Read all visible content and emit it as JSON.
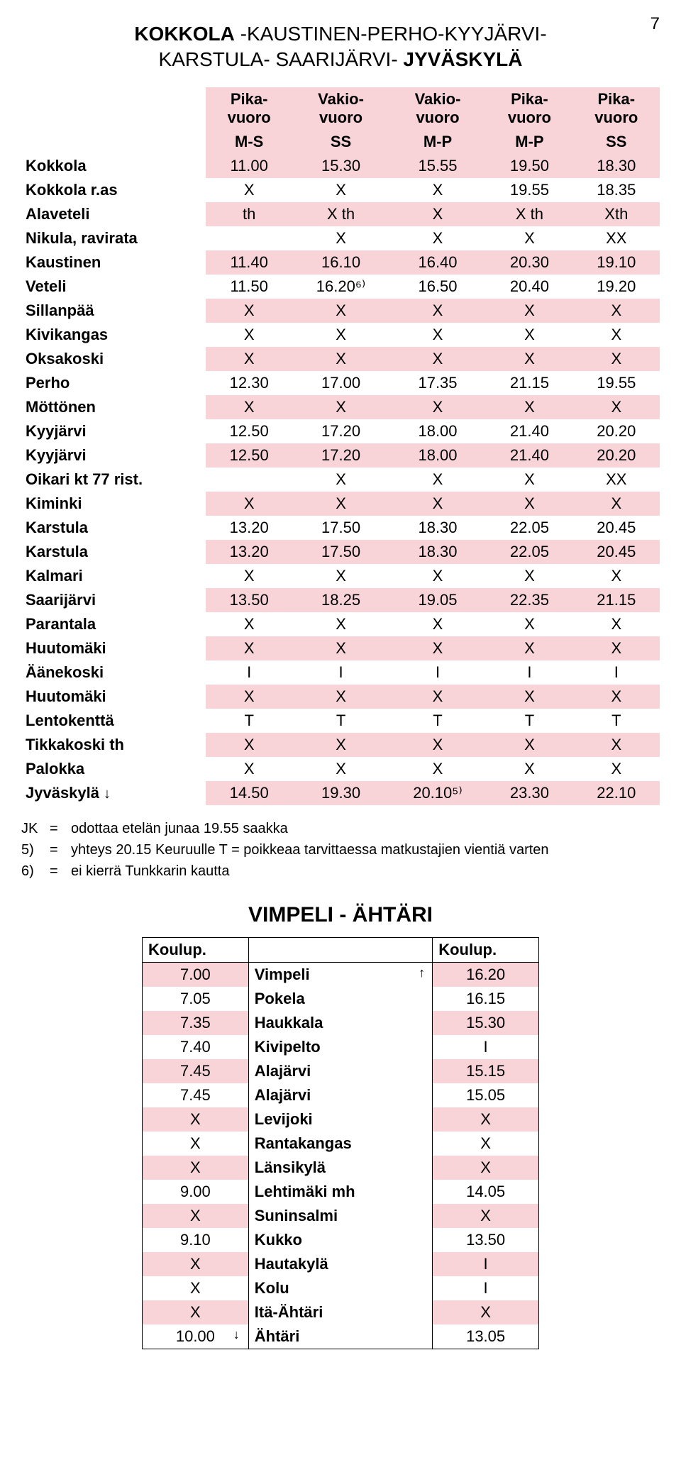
{
  "page_number": "7",
  "title_line1_bold1": "KOKKOLA",
  "title_line1_light": " -KAUSTINEN-PERHO-KYYJÄRVI-",
  "title_line2_light": "KARSTULA- SAARIJÄRVI- ",
  "title_line2_bold": "JYVÄSKYLÄ",
  "main_table": {
    "header1": [
      "Pika-vuoro",
      "Vakio-vuoro",
      "Vakio-vuoro",
      "Pika-vuoro",
      "Pika-vuoro"
    ],
    "header2": [
      "M-S",
      "SS",
      "M-P",
      "M-P",
      "SS"
    ],
    "rows": [
      {
        "stop": "Kokkola",
        "cells": [
          "11.00",
          "15.30",
          "15.55",
          "19.50",
          "18.30"
        ],
        "zebra": true
      },
      {
        "stop": "Kokkola r.as",
        "cells": [
          "X",
          "X",
          "X",
          "19.55",
          "18.35"
        ],
        "zebra": false
      },
      {
        "stop": "Alaveteli",
        "cells": [
          "th",
          "X th",
          "X",
          "X th",
          "Xth"
        ],
        "zebra": true
      },
      {
        "stop": "Nikula, ravirata",
        "cells": [
          "",
          "X",
          "X",
          "X",
          "XX"
        ],
        "zebra": false
      },
      {
        "stop": "Kaustinen",
        "cells": [
          "11.40",
          "16.10",
          "16.40",
          "20.30",
          "19.10"
        ],
        "zebra": true
      },
      {
        "stop": "Veteli",
        "cells": [
          "11.50",
          "16.20⁶⁾",
          "16.50",
          "20.40",
          "19.20"
        ],
        "zebra": false
      },
      {
        "stop": "Sillanpää",
        "cells": [
          "X",
          "X",
          "X",
          "X",
          "X"
        ],
        "zebra": true
      },
      {
        "stop": "Kivikangas",
        "cells": [
          "X",
          "X",
          "X",
          "X",
          "X"
        ],
        "zebra": false
      },
      {
        "stop": "Oksakoski",
        "cells": [
          "X",
          "X",
          "X",
          "X",
          "X"
        ],
        "zebra": true
      },
      {
        "stop": "Perho",
        "cells": [
          "12.30",
          "17.00",
          "17.35",
          "21.15",
          "19.55"
        ],
        "zebra": false
      },
      {
        "stop": "Möttönen",
        "cells": [
          "X",
          "X",
          "X",
          "X",
          "X"
        ],
        "zebra": true
      },
      {
        "stop": "Kyyjärvi",
        "cells": [
          "12.50",
          "17.20",
          "18.00",
          "21.40",
          "20.20"
        ],
        "zebra": false
      },
      {
        "stop": "Kyyjärvi",
        "cells": [
          "12.50",
          "17.20",
          "18.00",
          "21.40",
          "20.20"
        ],
        "zebra": true
      },
      {
        "stop": "Oikari kt 77 rist.",
        "cells": [
          "",
          "X",
          "X",
          "X",
          "XX"
        ],
        "zebra": false
      },
      {
        "stop": "Kiminki",
        "cells": [
          "X",
          "X",
          "X",
          "X",
          "X"
        ],
        "zebra": true
      },
      {
        "stop": "Karstula",
        "cells": [
          "13.20",
          "17.50",
          "18.30",
          "22.05",
          "20.45"
        ],
        "zebra": false
      },
      {
        "stop": "Karstula",
        "cells": [
          "13.20",
          "17.50",
          "18.30",
          "22.05",
          "20.45"
        ],
        "zebra": true
      },
      {
        "stop": "Kalmari",
        "cells": [
          "X",
          "X",
          "X",
          "X",
          "X"
        ],
        "zebra": false
      },
      {
        "stop": "Saarijärvi",
        "cells": [
          "13.50",
          "18.25",
          "19.05",
          "22.35",
          "21.15"
        ],
        "zebra": true
      },
      {
        "stop": "Parantala",
        "cells": [
          "X",
          "X",
          "X",
          "X",
          "X"
        ],
        "zebra": false
      },
      {
        "stop": "Huutomäki",
        "cells": [
          "X",
          "X",
          "X",
          "X",
          "X"
        ],
        "zebra": true
      },
      {
        "stop": "Äänekoski",
        "cells": [
          "I",
          "I",
          "I",
          "I",
          "I"
        ],
        "zebra": false
      },
      {
        "stop": "Huutomäki",
        "cells": [
          "X",
          "X",
          "X",
          "X",
          "X"
        ],
        "zebra": true
      },
      {
        "stop": "Lentokenttä",
        "cells": [
          "T",
          "T",
          "T",
          "T",
          "T"
        ],
        "zebra": false
      },
      {
        "stop": "Tikkakoski th",
        "cells": [
          "X",
          "X",
          "X",
          "X",
          "X"
        ],
        "zebra": true
      },
      {
        "stop": "Palokka",
        "cells": [
          "X",
          "X",
          "X",
          "X",
          "X"
        ],
        "zebra": false
      },
      {
        "stop": "Jyväskylä",
        "arrow": "↓",
        "cells": [
          "14.50",
          "19.30",
          "20.10⁵⁾",
          "23.30",
          "22.10"
        ],
        "zebra": true
      }
    ]
  },
  "legend": [
    {
      "key": "JK",
      "eq": "=",
      "val": "odottaa etelän junaa 19.55 saakka"
    },
    {
      "key": "5)",
      "eq": "=",
      "val": "yhteys 20.15 Keuruulle               T = poikkeaa tarvittaessa matkustajien vientiä varten"
    },
    {
      "key": "6)",
      "eq": "=",
      "val": "ei kierrä Tunkkarin kautta"
    }
  ],
  "title2": "VIMPELI - ÄHTÄRI",
  "table2": {
    "header": [
      "Koulup.",
      "",
      "Koulup."
    ],
    "rows": [
      {
        "l": "7.00",
        "m": "Vimpeli",
        "r": "16.20",
        "zebra": true,
        "arrow_up": true
      },
      {
        "l": "7.05",
        "m": "Pokela",
        "r": "16.15",
        "zebra": false
      },
      {
        "l": "7.35",
        "m": "Haukkala",
        "r": "15.30",
        "zebra": true
      },
      {
        "l": "7.40",
        "m": "Kivipelto",
        "r": "I",
        "zebra": false
      },
      {
        "l": "7.45",
        "m": "Alajärvi",
        "r": "15.15",
        "zebra": true
      },
      {
        "l": "7.45",
        "m": "Alajärvi",
        "r": "15.05",
        "zebra": false
      },
      {
        "l": "X",
        "m": "Levijoki",
        "r": "X",
        "zebra": true
      },
      {
        "l": "X",
        "m": "Rantakangas",
        "r": "X",
        "zebra": false
      },
      {
        "l": "X",
        "m": "Länsikylä",
        "r": "X",
        "zebra": true
      },
      {
        "l": "9.00",
        "m": "Lehtimäki mh",
        "r": "14.05",
        "zebra": false
      },
      {
        "l": "X",
        "m": "Suninsalmi",
        "r": "X",
        "zebra": true
      },
      {
        "l": "9.10",
        "m": "Kukko",
        "r": "13.50",
        "zebra": false
      },
      {
        "l": "X",
        "m": "Hautakylä",
        "r": "I",
        "zebra": true
      },
      {
        "l": "X",
        "m": "Kolu",
        "r": "I",
        "zebra": false
      },
      {
        "l": "X",
        "m": "Itä-Ähtäri",
        "r": "X",
        "zebra": true
      },
      {
        "l": "10.00",
        "m": "Ähtäri",
        "r": "13.05",
        "zebra": false,
        "arrow_down": true
      }
    ]
  }
}
